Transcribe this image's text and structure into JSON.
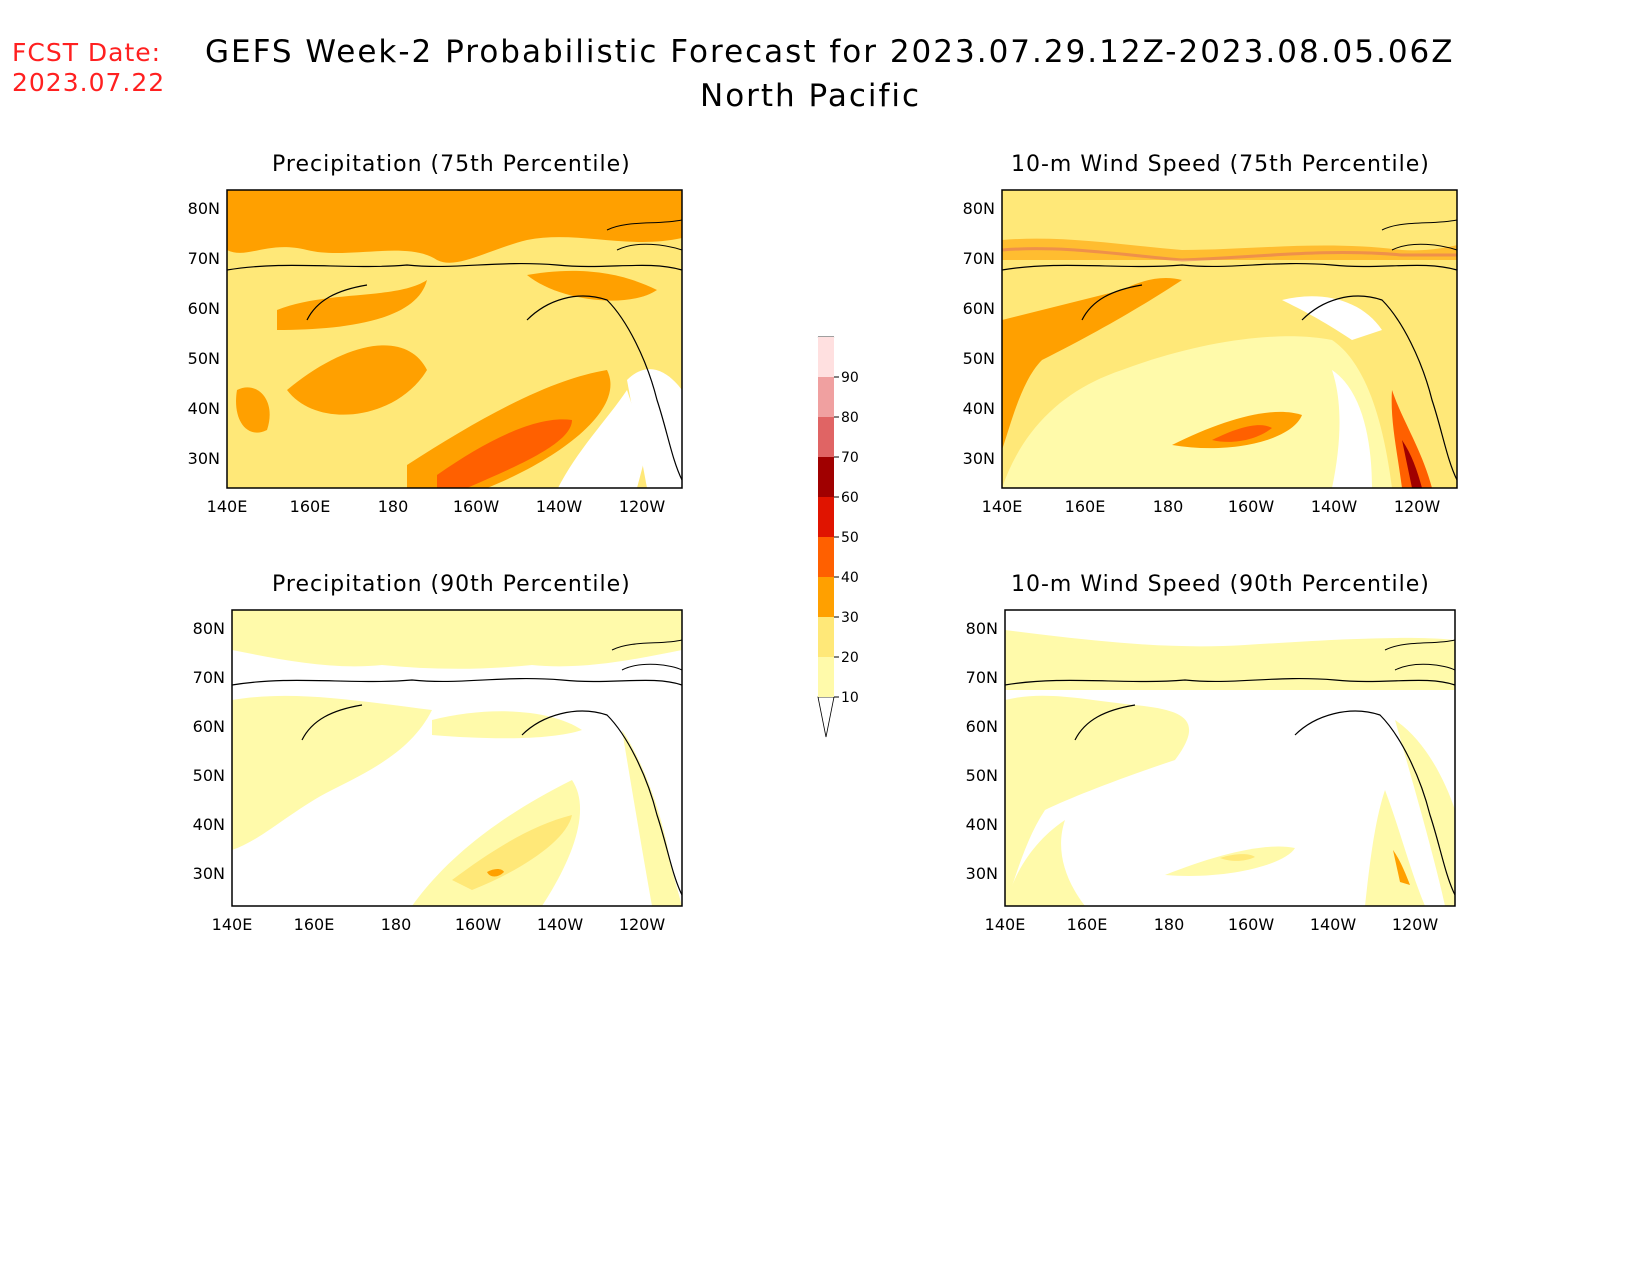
{
  "header": {
    "fcst_label": "FCST Date:",
    "fcst_date": "2023.07.22",
    "title": "GEFS Week-2 Probabilistic Forecast for 2023.07.29.12Z-2023.08.05.06Z",
    "subtitle": "North Pacific"
  },
  "panels": [
    {
      "title": "Precipitation (75th Percentile)"
    },
    {
      "title": "10-m Wind Speed (75th Percentile)"
    },
    {
      "title": "Precipitation (90th Percentile)"
    },
    {
      "title": "10-m Wind Speed (90th Percentile)"
    }
  ],
  "axes": {
    "lat_labels": [
      "80N",
      "70N",
      "60N",
      "50N",
      "40N",
      "30N"
    ],
    "lon_labels": [
      "140E",
      "160E",
      "180",
      "160W",
      "140W",
      "120W"
    ]
  },
  "colorbar": {
    "labels": [
      "10",
      "20",
      "30",
      "40",
      "50",
      "60",
      "70",
      "80",
      "90"
    ],
    "colors": [
      "#fffaaa",
      "#ffe878",
      "#ffa000",
      "#ff6000",
      "#e01400",
      "#a00000",
      "#e06464",
      "#f0a0a0",
      "#ffe0e0"
    ]
  }
}
